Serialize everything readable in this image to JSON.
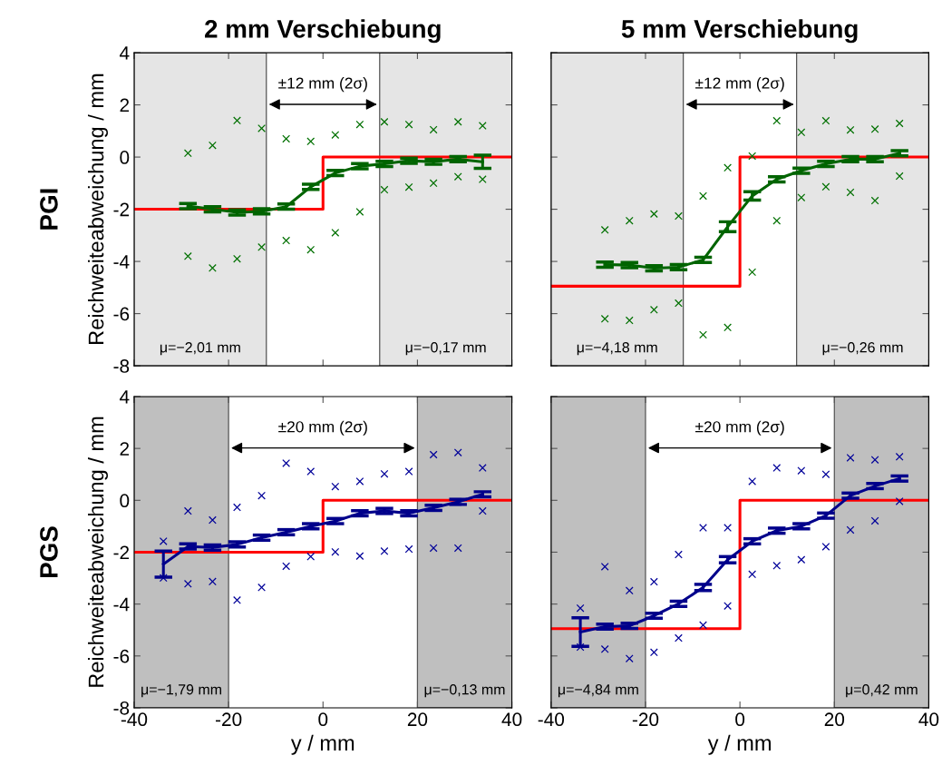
{
  "chart_data": [
    {
      "type": "scatter",
      "title": "2 mm Verschiebung",
      "ylabel": "Reichweiteabweichung / mm",
      "xlim": [
        -40,
        40
      ],
      "ylim": [
        -8,
        4
      ],
      "xticks": [
        -40,
        -20,
        0,
        20,
        40
      ],
      "yticks": [
        -8,
        -6,
        -4,
        -2,
        0,
        2,
        4
      ],
      "tick_labels": "y",
      "annotations": [
        "±12 mm (2σ)",
        "PGI"
      ],
      "bands": [
        {
          "axis": "x",
          "from": -40,
          "to": -12,
          "label": "μ=−2,01 mm",
          "color": "#e5e5e5"
        },
        {
          "axis": "x",
          "from": 12,
          "to": 40,
          "label": "μ=−0,17 mm",
          "color": "#e5e5e5"
        }
      ],
      "series": [
        {
          "marker": "cross",
          "color": "#007000",
          "x": [
            -28.6,
            -28.6,
            -23.4,
            -23.4,
            -18.2,
            -18.2,
            -13,
            -13,
            -7.8,
            -7.8,
            -2.6,
            -2.6,
            2.6,
            2.6,
            7.8,
            7.8,
            13,
            13,
            18.2,
            18.2,
            23.4,
            23.4,
            28.6,
            28.6,
            33.8,
            33.8
          ],
          "values": [
            0.15,
            -3.8,
            0.45,
            -4.25,
            1.4,
            -3.9,
            1.1,
            -3.45,
            0.7,
            -3.2,
            0.6,
            -3.55,
            0.85,
            -2.9,
            1.25,
            -2.1,
            1.35,
            -1.25,
            1.25,
            -1.15,
            1.05,
            -1.0,
            1.35,
            -0.75,
            1.2,
            -0.85
          ]
        },
        {
          "type": "line",
          "marker": "none",
          "color": "#006400",
          "x": [
            -28.6,
            -23.4,
            -18.2,
            -13,
            -7.8,
            -2.6,
            2.6,
            7.8,
            13,
            18.2,
            23.4,
            28.6,
            33.8
          ],
          "values": [
            -1.88,
            -2.0,
            -2.12,
            -2.08,
            -1.9,
            -1.14,
            -0.61,
            -0.35,
            -0.26,
            -0.14,
            -0.18,
            -0.08,
            -0.18
          ],
          "errors": [
            0.1,
            0.1,
            0.1,
            0.1,
            0.1,
            0.1,
            0.1,
            0.1,
            0.1,
            0.1,
            0.1,
            0.1,
            0.25
          ]
        },
        {
          "type": "step",
          "marker": "none",
          "color": "#ff0000",
          "x": [
            -40,
            0,
            40
          ],
          "values": [
            -2,
            0,
            0
          ]
        }
      ]
    },
    {
      "type": "scatter",
      "title": "5 mm Verschiebung",
      "xlim": [
        -40,
        40
      ],
      "ylim": [
        -8,
        4
      ],
      "xticks": [
        -40,
        -20,
        0,
        20,
        40
      ],
      "yticks": [
        -8,
        -6,
        -4,
        -2,
        0,
        2,
        4
      ],
      "tick_labels": false,
      "annotations": [
        "±12 mm (2σ)"
      ],
      "bands": [
        {
          "axis": "x",
          "from": -40,
          "to": -12,
          "label": "μ=−4,18 mm",
          "color": "#e5e5e5"
        },
        {
          "axis": "x",
          "from": 12,
          "to": 40,
          "label": "μ=−0,26 mm",
          "color": "#e5e5e5"
        }
      ],
      "series": [
        {
          "marker": "cross",
          "color": "#007000",
          "x": [
            -28.6,
            -28.6,
            -23.4,
            -23.4,
            -18.2,
            -18.2,
            -13,
            -13,
            -7.8,
            -7.8,
            -2.6,
            -2.6,
            2.6,
            2.6,
            7.8,
            7.8,
            13,
            13,
            18.2,
            18.2,
            23.4,
            23.4,
            28.6,
            28.6,
            33.8,
            33.8
          ],
          "values": [
            -2.79,
            -6.2,
            -2.44,
            -6.26,
            -2.18,
            -5.85,
            -2.26,
            -5.6,
            -1.49,
            -6.81,
            -0.41,
            -6.53,
            0.04,
            -4.41,
            1.39,
            -2.44,
            0.95,
            -1.55,
            1.39,
            -1.14,
            1.04,
            -1.35,
            1.07,
            -1.67,
            1.29,
            -0.73
          ]
        },
        {
          "type": "line",
          "marker": "none",
          "color": "#006400",
          "x": [
            -28.6,
            -23.4,
            -18.2,
            -13,
            -7.8,
            -2.6,
            2.6,
            7.8,
            13,
            18.2,
            23.4,
            28.6,
            33.8
          ],
          "values": [
            -4.12,
            -4.14,
            -4.26,
            -4.22,
            -3.94,
            -2.67,
            -1.49,
            -0.85,
            -0.52,
            -0.26,
            -0.08,
            -0.08,
            0.15
          ],
          "errors": [
            0.1,
            0.1,
            0.1,
            0.1,
            0.1,
            0.19,
            0.16,
            0.1,
            0.1,
            0.1,
            0.1,
            0.1,
            0.1
          ]
        },
        {
          "type": "step",
          "marker": "none",
          "color": "#ff0000",
          "x": [
            -40,
            0,
            40
          ],
          "values": [
            -4.95,
            0,
            0
          ]
        }
      ]
    },
    {
      "type": "scatter",
      "xlabel": "y / mm",
      "ylabel": "Reichweiteabweichung / mm",
      "xlim": [
        -40,
        40
      ],
      "ylim": [
        -8,
        4
      ],
      "xticks": [
        -40,
        -20,
        0,
        20,
        40
      ],
      "yticks": [
        -8,
        -6,
        -4,
        -2,
        0,
        2,
        4
      ],
      "annotations": [
        "±20 mm (2σ)",
        "PGS"
      ],
      "bands": [
        {
          "axis": "x",
          "from": -40,
          "to": -20,
          "label": "μ=−1,79 mm",
          "color": "#bfbfbf"
        },
        {
          "axis": "x",
          "from": 20,
          "to": 40,
          "label": "μ=−0,13 mm",
          "color": "#bfbfbf"
        }
      ],
      "series": [
        {
          "marker": "cross",
          "color": "#000099",
          "x": [
            -33.8,
            -33.8,
            -28.6,
            -28.6,
            -23.4,
            -23.4,
            -18.2,
            -18.2,
            -13,
            -13,
            -7.8,
            -7.8,
            -2.6,
            -2.6,
            2.6,
            2.6,
            7.8,
            7.8,
            13,
            13,
            18.2,
            18.2,
            23.4,
            23.4,
            28.6,
            28.6,
            33.8,
            33.8
          ],
          "values": [
            -1.58,
            -2.99,
            -0.41,
            -3.22,
            -0.76,
            -3.13,
            -0.27,
            -3.85,
            0.18,
            -3.36,
            1.43,
            -2.54,
            1.11,
            -2.17,
            0.53,
            -1.99,
            0.73,
            -2.15,
            1.02,
            -1.96,
            1.11,
            -1.88,
            1.76,
            -1.84,
            1.84,
            -1.84,
            1.25,
            -0.41
          ]
        },
        {
          "type": "line",
          "marker": "none",
          "color": "#00008b",
          "x": [
            -33.8,
            -28.6,
            -23.4,
            -18.2,
            -13,
            -7.8,
            -2.6,
            2.6,
            7.8,
            13,
            18.2,
            23.4,
            28.6,
            33.8
          ],
          "values": [
            -2.46,
            -1.78,
            -1.82,
            -1.7,
            -1.44,
            -1.23,
            -1.0,
            -0.8,
            -0.5,
            -0.41,
            -0.5,
            -0.29,
            -0.06,
            0.23
          ],
          "errors": [
            0.5,
            0.1,
            0.1,
            0.1,
            0.1,
            0.1,
            0.1,
            0.1,
            0.1,
            0.1,
            0.1,
            0.1,
            0.1,
            0.1
          ]
        },
        {
          "type": "step",
          "marker": "none",
          "color": "#ff0000",
          "x": [
            -40,
            0,
            40
          ],
          "values": [
            -2,
            0,
            0
          ]
        }
      ]
    },
    {
      "type": "scatter",
      "xlabel": "y / mm",
      "xlim": [
        -40,
        40
      ],
      "ylim": [
        -8,
        4
      ],
      "xticks": [
        -40,
        -20,
        0,
        20,
        40
      ],
      "yticks": [
        -8,
        -6,
        -4,
        -2,
        0,
        2,
        4
      ],
      "tick_labels": "x",
      "annotations": [
        "±20 mm (2σ)"
      ],
      "bands": [
        {
          "axis": "x",
          "from": -40,
          "to": -20,
          "label": "μ=−4,84 mm",
          "color": "#bfbfbf"
        },
        {
          "axis": "x",
          "from": 20,
          "to": 40,
          "label": "μ=0,42 mm",
          "color": "#bfbfbf"
        }
      ],
      "series": [
        {
          "marker": "cross",
          "color": "#000099",
          "x": [
            -33.8,
            -33.8,
            -28.6,
            -28.6,
            -23.4,
            -23.4,
            -18.2,
            -18.2,
            -13,
            -13,
            -7.8,
            -7.8,
            -2.6,
            -2.6,
            2.6,
            2.6,
            7.8,
            7.8,
            13,
            13,
            18.2,
            18.2,
            23.4,
            23.4,
            28.6,
            28.6,
            33.8,
            33.8
          ],
          "values": [
            -4.16,
            -5.66,
            -2.56,
            -5.74,
            -3.48,
            -6.1,
            -3.14,
            -5.86,
            -2.09,
            -5.31,
            -1.06,
            -4.81,
            -1.06,
            -4.07,
            0.73,
            -2.85,
            1.25,
            -2.52,
            1.14,
            -2.29,
            1.0,
            -1.79,
            1.64,
            -1.14,
            1.56,
            -0.79,
            1.68,
            -0.04
          ]
        },
        {
          "type": "line",
          "marker": "none",
          "color": "#00008b",
          "x": [
            -33.8,
            -28.6,
            -23.4,
            -18.2,
            -13,
            -7.8,
            -2.6,
            2.6,
            7.8,
            13,
            18.2,
            23.4,
            28.6,
            33.8
          ],
          "values": [
            -5.08,
            -4.87,
            -4.84,
            -4.45,
            -3.99,
            -3.36,
            -2.29,
            -1.58,
            -1.17,
            -1.0,
            -0.59,
            0.18,
            0.55,
            0.84
          ],
          "errors": [
            0.55,
            0.1,
            0.1,
            0.1,
            0.1,
            0.12,
            0.12,
            0.1,
            0.1,
            0.1,
            0.1,
            0.1,
            0.1,
            0.1
          ]
        },
        {
          "type": "step",
          "marker": "none",
          "color": "#ff0000",
          "x": [
            -40,
            0,
            40
          ],
          "values": [
            -4.95,
            0,
            0
          ]
        }
      ]
    }
  ]
}
